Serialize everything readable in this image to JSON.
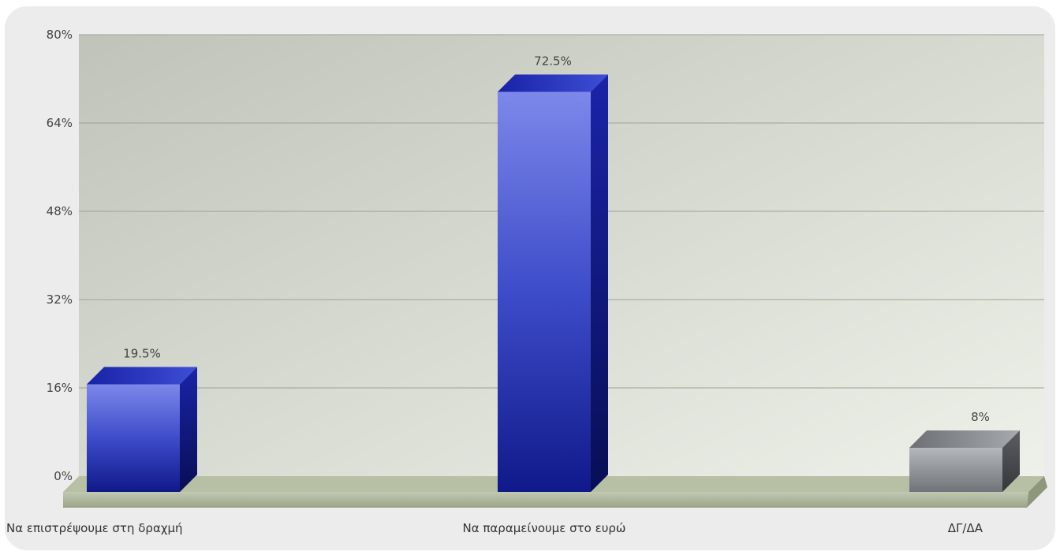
{
  "chart_data": {
    "type": "bar",
    "title": "",
    "xlabel": "",
    "ylabel": "",
    "categories": [
      "Να επιστρέψουμε στη δραχμή",
      "Να παραμείνουμε στο ευρώ",
      "ΔΓ/ΔΑ"
    ],
    "values": [
      19.5,
      72.5,
      8
    ],
    "value_labels": [
      "19.5%",
      "72.5%",
      "8%"
    ],
    "ylim": [
      0,
      80
    ],
    "y_ticks": [
      0,
      16,
      32,
      48,
      64,
      80
    ],
    "y_tick_labels": [
      "0%",
      "16%",
      "32%",
      "48%",
      "64%",
      "80%"
    ],
    "grid": true,
    "legend": "none",
    "colors": {
      "bars": [
        "#2e3fc4",
        "#2e3fc4",
        "#8a8e92"
      ],
      "background_top": "#c2c6bd",
      "background_bottom": "#eaefe6",
      "floor": "#a7b096"
    }
  }
}
